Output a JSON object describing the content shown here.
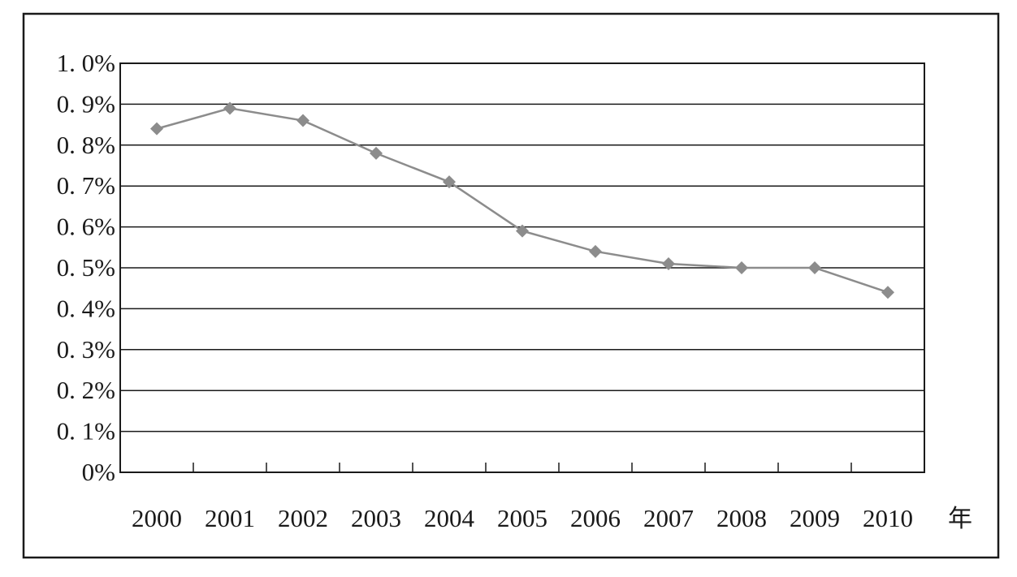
{
  "chart_data": {
    "type": "line",
    "title": "",
    "xlabel": "年",
    "ylabel": "",
    "categories": [
      "2000",
      "2001",
      "2002",
      "2003",
      "2004",
      "2005",
      "2006",
      "2007",
      "2008",
      "2009",
      "2010"
    ],
    "series": [
      {
        "values": [
          0.84,
          0.89,
          0.86,
          0.78,
          0.71,
          0.59,
          0.54,
          0.51,
          0.5,
          0.5,
          0.44
        ],
        "color": "#8c8c8c",
        "marker": "diamond"
      }
    ],
    "ylim": [
      0,
      1.0
    ],
    "yticks": [
      0,
      0.1,
      0.2,
      0.3,
      0.4,
      0.5,
      0.6,
      0.7,
      0.8,
      0.9,
      1.0
    ],
    "ytick_labels": [
      "0%",
      "0. 1%",
      "0. 2%",
      "0. 3%",
      "0. 4%",
      "0. 5%",
      "0. 6%",
      "0. 7%",
      "0. 8%",
      "0. 9%",
      "1. 0%"
    ],
    "grid": "horizontal",
    "legend": "none"
  }
}
